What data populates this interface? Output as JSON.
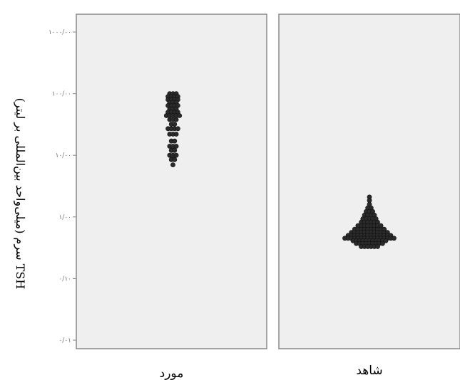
{
  "chart_data": {
    "type": "scatter",
    "subtype": "dot-plot-log-scale",
    "ylabel": "TSH سرم (میلی‌واحد بین‌المللی بر لیتر)",
    "yscale": "log",
    "ylim": [
      0.01,
      1000
    ],
    "ytick_values": [
      0.01,
      0.1,
      1,
      10,
      100,
      1000
    ],
    "ytick_labels": [
      "۰/۰۱",
      "۰/۱۰",
      "۱/۰۰",
      "۱۰/۰۰",
      "۱۰۰/۰۰",
      "۱۰۰۰/۰۰"
    ],
    "grid": false,
    "panels": [
      {
        "category": "مورد",
        "dot_color": "#2b2b2b",
        "rows": [
          {
            "value": 100,
            "count": 3
          },
          {
            "value": 90,
            "count": 4
          },
          {
            "value": 80,
            "count": 4
          },
          {
            "value": 72,
            "count": 3
          },
          {
            "value": 64,
            "count": 4
          },
          {
            "value": 56,
            "count": 3
          },
          {
            "value": 50,
            "count": 4
          },
          {
            "value": 44,
            "count": 5
          },
          {
            "value": 38,
            "count": 3
          },
          {
            "value": 32,
            "count": 2
          },
          {
            "value": 27,
            "count": 4
          },
          {
            "value": 22,
            "count": 3
          },
          {
            "value": 17,
            "count": 2
          },
          {
            "value": 14,
            "count": 3
          },
          {
            "value": 12,
            "count": 2
          },
          {
            "value": 10,
            "count": 3
          },
          {
            "value": 8.5,
            "count": 2
          },
          {
            "value": 7,
            "count": 1
          }
        ]
      },
      {
        "category": "شاهد",
        "dot_color": "#2b2b2b",
        "rows": [
          {
            "value": 2.1,
            "count": 1
          },
          {
            "value": 1.85,
            "count": 1
          },
          {
            "value": 1.6,
            "count": 1
          },
          {
            "value": 1.4,
            "count": 2
          },
          {
            "value": 1.22,
            "count": 3
          },
          {
            "value": 1.07,
            "count": 4
          },
          {
            "value": 0.93,
            "count": 5
          },
          {
            "value": 0.82,
            "count": 6
          },
          {
            "value": 0.72,
            "count": 8
          },
          {
            "value": 0.63,
            "count": 10
          },
          {
            "value": 0.56,
            "count": 12
          },
          {
            "value": 0.5,
            "count": 14
          },
          {
            "value": 0.45,
            "count": 16
          },
          {
            "value": 0.41,
            "count": 11
          },
          {
            "value": 0.37,
            "count": 9
          },
          {
            "value": 0.33,
            "count": 6
          }
        ]
      }
    ]
  }
}
